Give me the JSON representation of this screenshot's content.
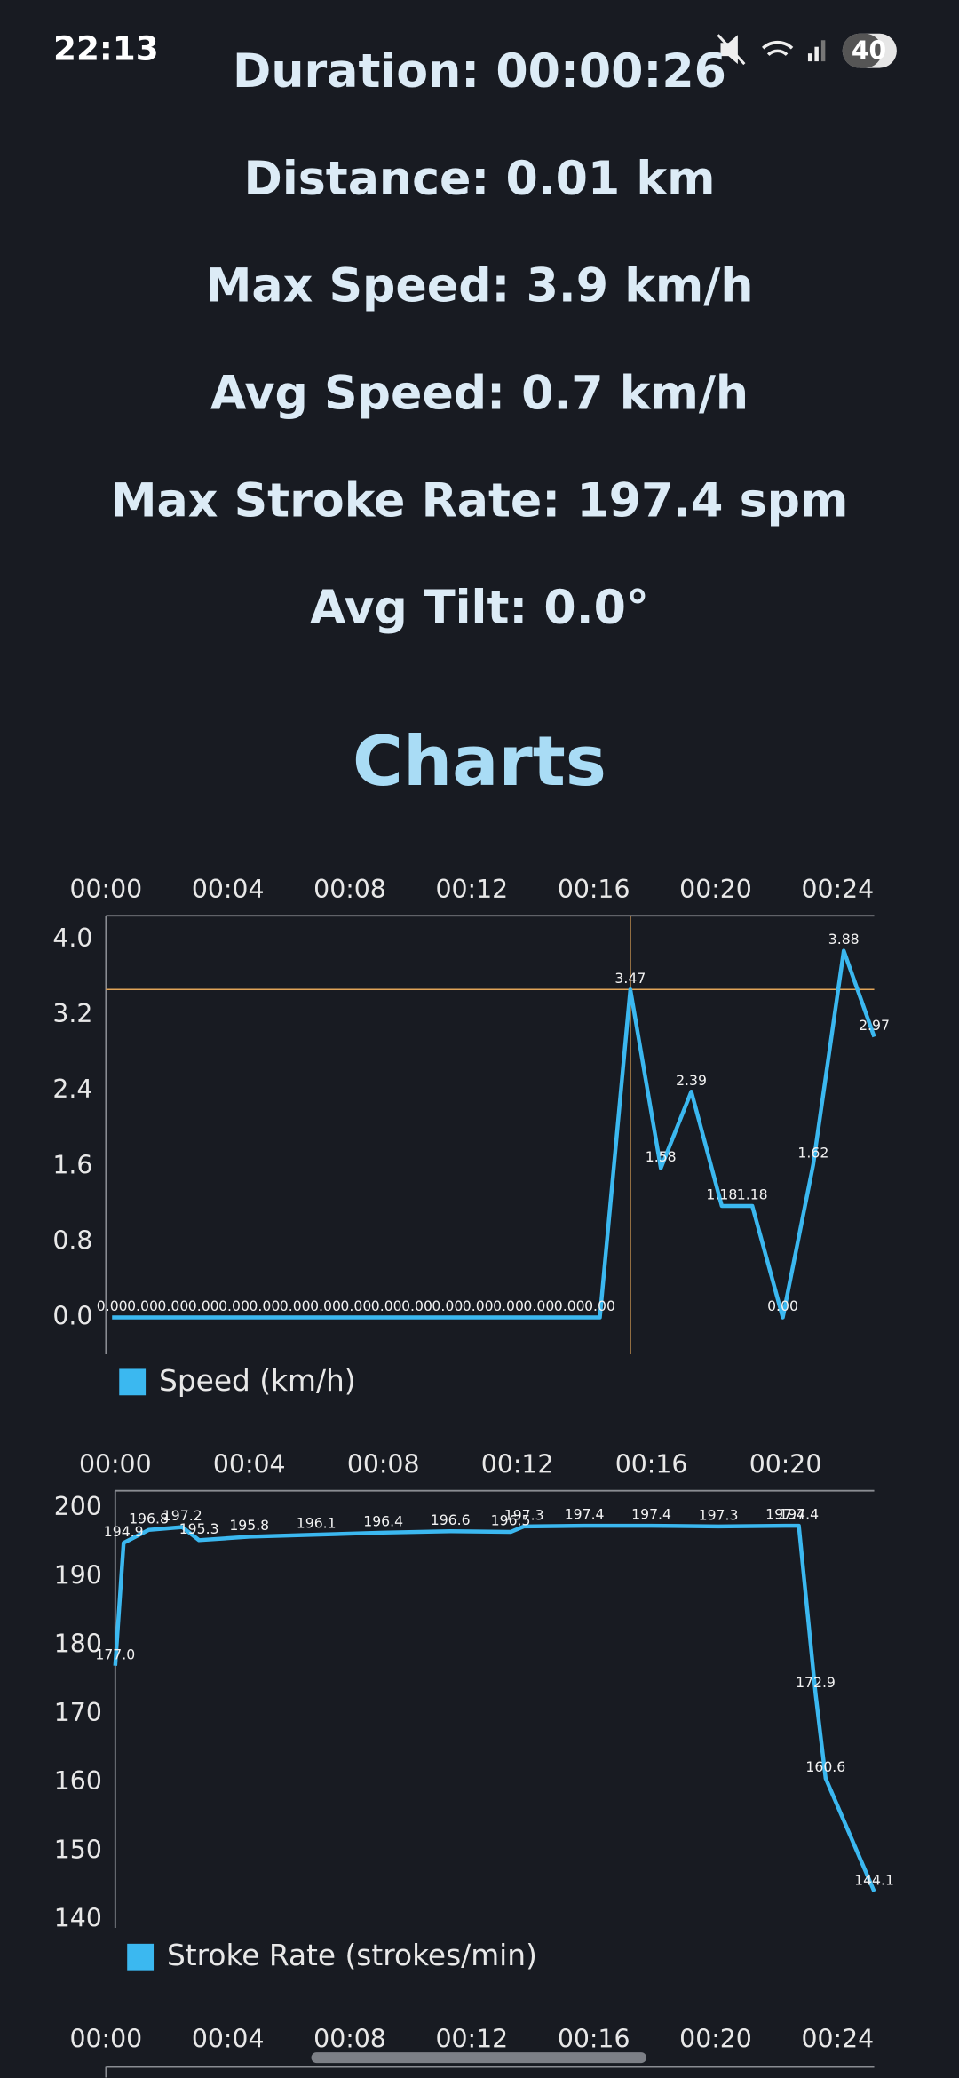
{
  "status_bar": {
    "time": "22:13",
    "battery": "40"
  },
  "stats": [
    "Duration: 00:00:26",
    "Distance: 0.01 km",
    "Max Speed: 3.9 km/h",
    "Avg Speed: 0.7 km/h",
    "Max Stroke Rate: 197.4 spm",
    "Avg Tilt: 0.0°"
  ],
  "heading": "Charts",
  "chart_data": [
    {
      "type": "line",
      "x": [
        0.2,
        1.2,
        2.2,
        3.2,
        4.2,
        5.2,
        6.2,
        7.2,
        8.2,
        9.2,
        10.2,
        11.2,
        12.2,
        13.2,
        14.2,
        15.2,
        16.2,
        17.2,
        18.2,
        19.2,
        20.2,
        21.2,
        22.2,
        23.2,
        24.2,
        25.2
      ],
      "series": [
        {
          "name": "Speed (km/h)",
          "color": "#3bb8f0",
          "values": [
            0,
            0,
            0,
            0,
            0,
            0,
            0,
            0,
            0,
            0,
            0,
            0,
            0,
            0,
            0,
            0,
            0,
            3.47,
            1.58,
            2.39,
            1.18,
            1.18,
            0,
            1.62,
            3.88,
            2.97
          ],
          "value_labels": [
            "0.00",
            "0.00",
            "0.00",
            "0.00",
            "0.00",
            "0.00",
            "0.00",
            "0.00",
            "0.00",
            "0.00",
            "0.00",
            "0.00",
            "0.00",
            "0.00",
            "0.00",
            "0.00",
            "0.00",
            "3.47",
            "1.58",
            "2.39",
            "1.18",
            "1.18",
            "0.00",
            "1.62",
            "3.88",
            "2.97"
          ]
        }
      ],
      "xlim": [
        0,
        25.2
      ],
      "xticks": [
        {
          "value": 0,
          "label": "00:00"
        },
        {
          "value": 4,
          "label": "00:04"
        },
        {
          "value": 8,
          "label": "00:08"
        },
        {
          "value": 12,
          "label": "00:12"
        },
        {
          "value": 16,
          "label": "00:16"
        },
        {
          "value": 20,
          "label": "00:20"
        },
        {
          "value": 24,
          "label": "00:24"
        }
      ],
      "ylim": [
        -0.39,
        4.25
      ],
      "yticks": [
        {
          "value": 0,
          "label": "0.0"
        },
        {
          "value": 0.8,
          "label": "0.8"
        },
        {
          "value": 1.6,
          "label": "1.6"
        },
        {
          "value": 2.4,
          "label": "2.4"
        },
        {
          "value": 3.2,
          "label": "3.2"
        },
        {
          "value": 4,
          "label": "4.0"
        }
      ],
      "crosshair_point": 17,
      "crosshair_color": "#e0a458"
    },
    {
      "type": "line",
      "x": [
        0,
        0.25,
        1,
        2,
        2.5,
        4,
        6,
        8,
        10,
        11.8,
        12.2,
        14,
        16,
        18,
        20,
        20.4,
        20.9,
        21.2,
        22.65
      ],
      "series": [
        {
          "name": "Stroke Rate (strokes/min)",
          "color": "#3bb8f0",
          "values": [
            177.0,
            194.9,
            196.8,
            197.2,
            195.3,
            195.8,
            196.1,
            196.4,
            196.6,
            196.5,
            197.3,
            197.4,
            197.4,
            197.3,
            197.4,
            197.4,
            172.9,
            160.6,
            144.1
          ],
          "value_labels": [
            "177.0",
            "194.9",
            "196.8",
            "197.2",
            "195.3",
            "195.8",
            "196.1",
            "196.4",
            "196.6",
            "196.5",
            "197.3",
            "197.4",
            "197.4",
            "197.3",
            "197.4",
            "197.4",
            "172.9",
            "160.6",
            "144.1"
          ]
        }
      ],
      "xlim": [
        0,
        22.65
      ],
      "xticks": [
        {
          "value": 0,
          "label": "00:00"
        },
        {
          "value": 4,
          "label": "00:04"
        },
        {
          "value": 8,
          "label": "00:08"
        },
        {
          "value": 12,
          "label": "00:12"
        },
        {
          "value": 16,
          "label": "00:16"
        },
        {
          "value": 20,
          "label": "00:20"
        }
      ],
      "ylim": [
        138.8,
        202.5
      ],
      "yticks": [
        140,
        150,
        160,
        170,
        180,
        190,
        200
      ]
    },
    {
      "type": "line",
      "xlim": [
        0,
        25.2
      ],
      "xticks": [
        {
          "value": 0,
          "label": "00:00"
        },
        {
          "value": 4,
          "label": "00:04"
        },
        {
          "value": 8,
          "label": "00:08"
        },
        {
          "value": 12,
          "label": "00:12"
        },
        {
          "value": 16,
          "label": "00:16"
        },
        {
          "value": 20,
          "label": "00:20"
        },
        {
          "value": 24,
          "label": "00:24"
        }
      ]
    }
  ]
}
